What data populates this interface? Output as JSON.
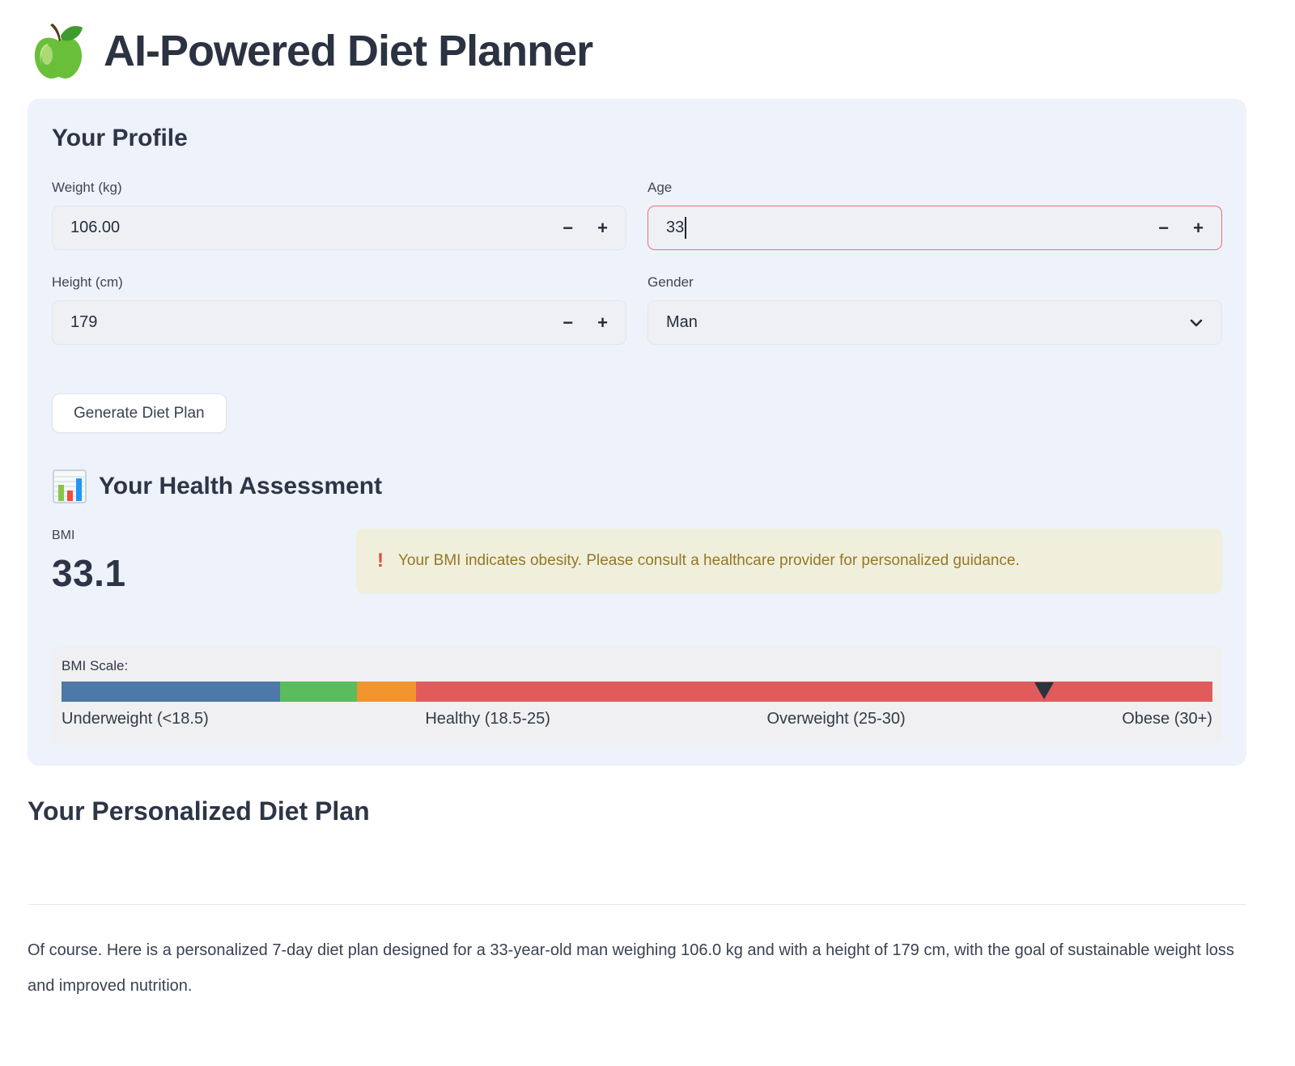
{
  "header": {
    "title": "AI-Powered Diet Planner"
  },
  "profile": {
    "heading": "Your Profile",
    "fields": {
      "weight": {
        "label": "Weight (kg)",
        "value": "106.00"
      },
      "age": {
        "label": "Age",
        "value": "33"
      },
      "height": {
        "label": "Height (cm)",
        "value": "179"
      },
      "gender": {
        "label": "Gender",
        "value": "Man"
      }
    },
    "stepper": {
      "minus": "−",
      "plus": "+"
    },
    "generate_button": "Generate Diet Plan"
  },
  "assessment": {
    "heading": "Your Health Assessment",
    "bmi_label": "BMI",
    "bmi_value": "33.1",
    "warning": {
      "icon": "!",
      "text": "Your BMI indicates obesity. Please consult a healthcare provider for personalized guidance."
    },
    "scale": {
      "label": "BMI Scale:",
      "segments": [
        {
          "name": "underweight",
          "label": "Underweight (<18.5)",
          "color": "#4d79a8",
          "width_pct": 19.0
        },
        {
          "name": "healthy",
          "label": "Healthy (18.5-25)",
          "color": "#5bbc5e",
          "width_pct": 6.7
        },
        {
          "name": "overweight",
          "label": "Overweight (25-30)",
          "color": "#f2952f",
          "width_pct": 5.1
        },
        {
          "name": "obese",
          "label": "Obese (30+)",
          "color": "#e05c5c",
          "width_pct": 69.2
        }
      ],
      "marker_position_pct": 85.4,
      "marker_color": "#2b3240"
    }
  },
  "plan": {
    "heading": "Your Personalized Diet Plan",
    "paragraph": "Of course. Here is a personalized 7-day diet plan designed for a 33-year-old man weighing 106.0 kg and with a height of 179 cm, with the goal of sustainable weight loss and improved nutrition."
  }
}
